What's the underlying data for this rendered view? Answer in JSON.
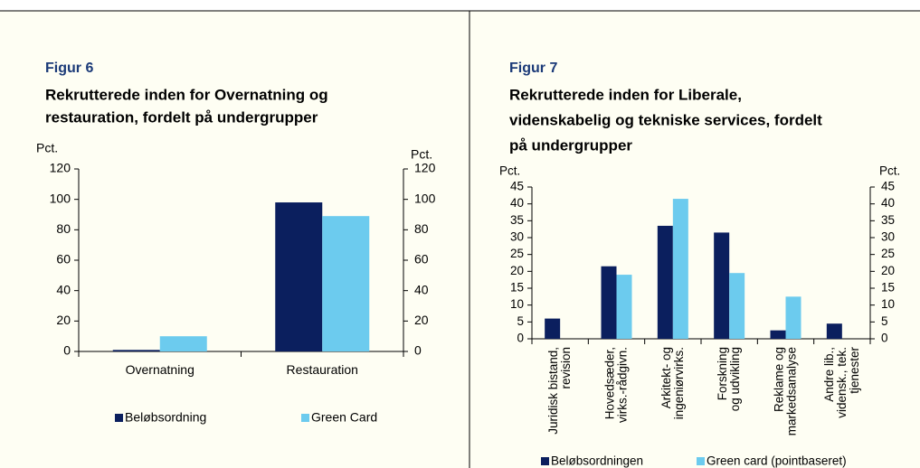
{
  "chart_data": [
    {
      "type": "bar",
      "figure_label": "Figur 6",
      "title": [
        "Rekrutterede inden for Overnatning og",
        "restauration,  fordelt på undergrupper"
      ],
      "ylabel": "Pct.",
      "y2label": "Pct.",
      "categories": [
        [
          "Overnatning"
        ],
        [
          "Restauration"
        ]
      ],
      "series": [
        {
          "name": "Beløbsordning",
          "color": "#0b1f5e",
          "values": [
            1,
            98
          ]
        },
        {
          "name": "Green Card",
          "color": "#6ccbee",
          "values": [
            10,
            89
          ]
        }
      ],
      "ylim": [
        0,
        120
      ],
      "yticks": [
        0,
        20,
        40,
        60,
        80,
        100,
        120
      ],
      "y2lim": [
        0,
        120
      ],
      "y2ticks": [
        0,
        20,
        40,
        60,
        80,
        100,
        120
      ]
    },
    {
      "type": "bar",
      "figure_label": "Figur 7",
      "title": [
        "Rekrutterede inden for Liberale,",
        "videnskabelig og tekniske services,  fordelt",
        "på undergrupper"
      ],
      "ylabel": "Pct.",
      "y2label": "Pct.",
      "categories": [
        [
          "Juridisk bistand,",
          "revision"
        ],
        [
          "Hovedsæder,",
          "virks.-rådgivn."
        ],
        [
          "Arkitekt- og",
          "ingeniørvirks."
        ],
        [
          "Forskning",
          "og udvikling"
        ],
        [
          "Reklame og",
          "markedsanalyse"
        ],
        [
          "Andre lib.,",
          "vidensk., tek.",
          "tjenester"
        ]
      ],
      "series": [
        {
          "name": "Beløbsordningen",
          "color": "#0b1f5e",
          "values": [
            6,
            21.5,
            33.5,
            31.5,
            2.5,
            4.5
          ]
        },
        {
          "name": "Green card (pointbaseret)",
          "color": "#6ccbee",
          "values": [
            0,
            19,
            41.5,
            19.5,
            12.5,
            0
          ]
        }
      ],
      "ylim": [
        0,
        45
      ],
      "yticks": [
        0,
        5,
        10,
        15,
        20,
        25,
        30,
        35,
        40,
        45
      ],
      "y2lim": [
        0,
        45
      ],
      "y2ticks": [
        0,
        5,
        10,
        15,
        20,
        25,
        30,
        35,
        40,
        45
      ]
    }
  ]
}
